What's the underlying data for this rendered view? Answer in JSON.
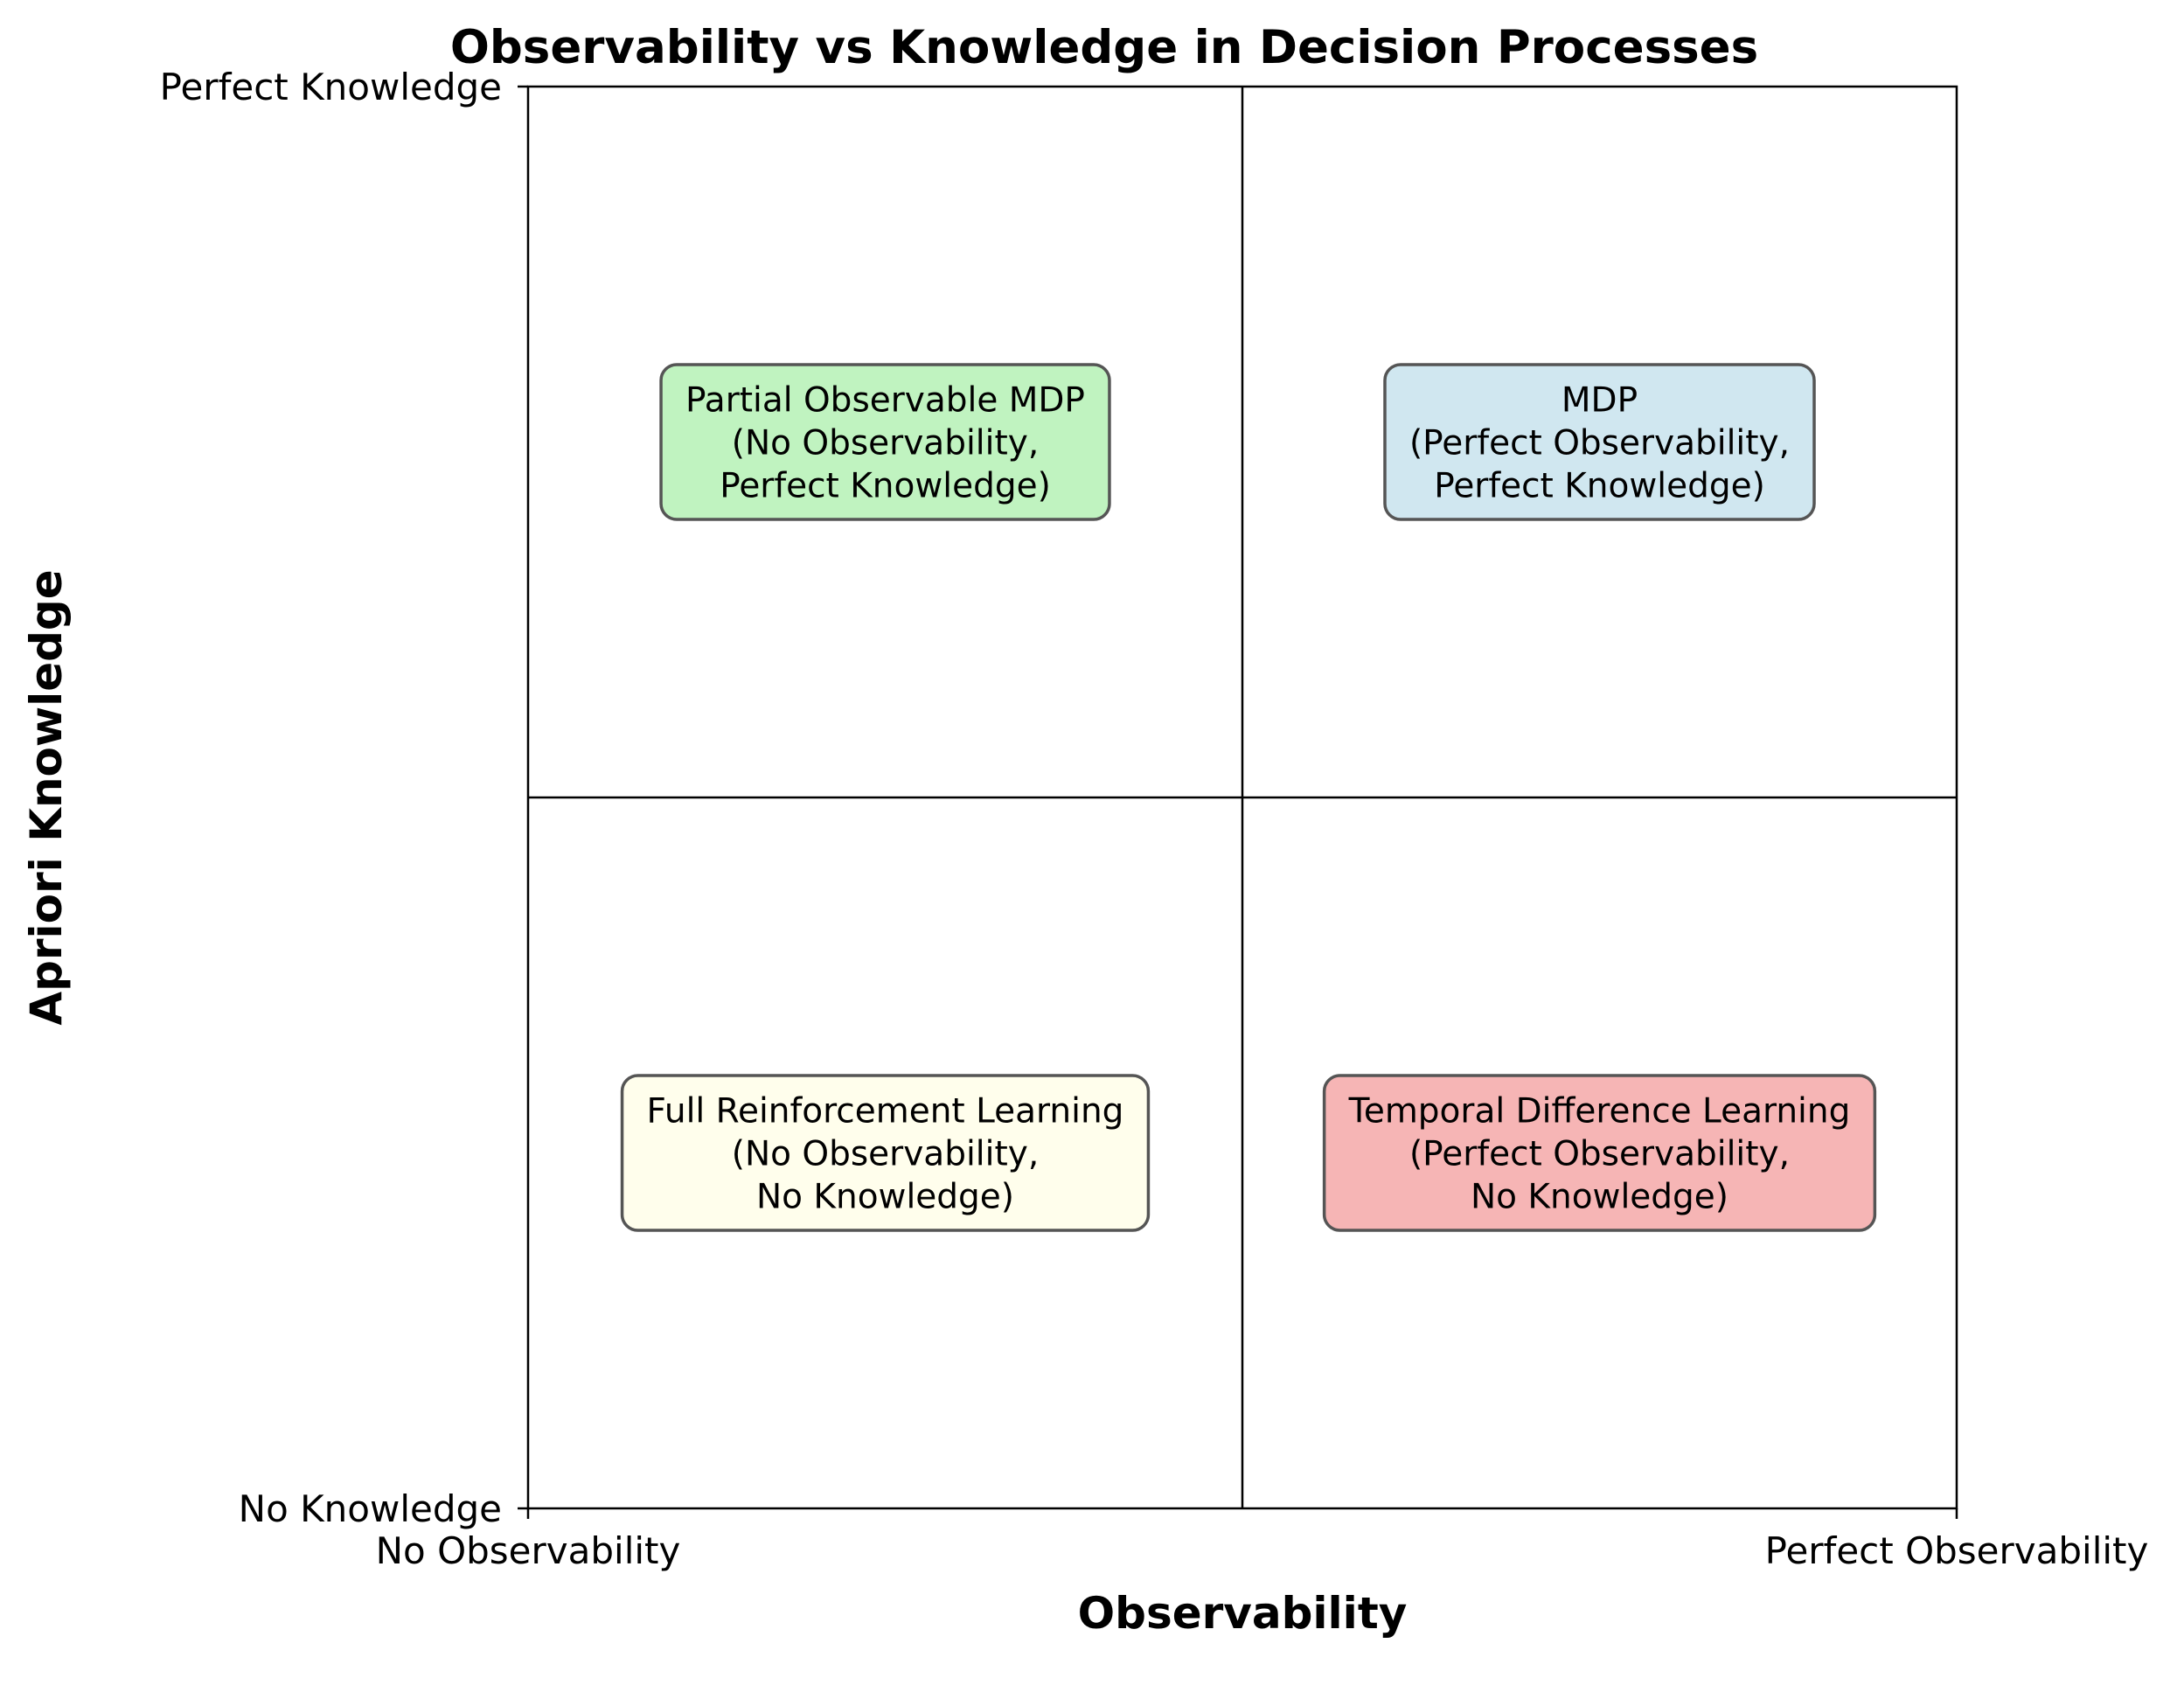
{
  "chart_data": {
    "type": "quadrant",
    "title": "Observability vs Knowledge in Decision Processes",
    "xlabel": "Observability",
    "ylabel": "Apriori Knowledge",
    "xlim": [
      0,
      1
    ],
    "ylim": [
      0,
      1
    ],
    "x_ticks": [
      {
        "value": 0,
        "label": "No Observability"
      },
      {
        "value": 1,
        "label": "Perfect Observability"
      }
    ],
    "y_ticks": [
      {
        "value": 0,
        "label": "No Knowledge"
      },
      {
        "value": 1,
        "label": "Perfect Knowledge"
      }
    ],
    "dividers": {
      "x": 0.5,
      "y": 0.5
    },
    "quadrants": [
      {
        "id": "pomdp",
        "x": 0.25,
        "y": 0.75,
        "lines": [
          "Partial Observable MDP",
          "(No Observability,",
          "Perfect Knowledge)"
        ],
        "color": "#bdf2bd"
      },
      {
        "id": "mdp",
        "x": 0.75,
        "y": 0.75,
        "lines": [
          "MDP",
          "(Perfect Observability,",
          "Perfect Knowledge)"
        ],
        "color": "#cee6ef"
      },
      {
        "id": "full-rl",
        "x": 0.25,
        "y": 0.25,
        "lines": [
          "Full Reinforcement Learning",
          "(No Observability,",
          "No Knowledge)"
        ],
        "color": "#fffeeb"
      },
      {
        "id": "td-learning",
        "x": 0.75,
        "y": 0.25,
        "lines": [
          "Temporal Difference Learning",
          "(Perfect Observability,",
          "No Knowledge)"
        ],
        "color": "#f5b1b1"
      }
    ]
  }
}
